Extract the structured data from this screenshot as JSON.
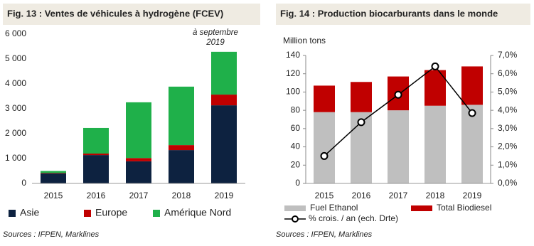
{
  "chart_data": [
    {
      "type": "bar",
      "stacked": true,
      "title": "Fig. 13 : Ventes de véhicules à hydrogène (FCEV)",
      "categories": [
        "2015",
        "2016",
        "2017",
        "2018",
        "2019"
      ],
      "series": [
        {
          "name": "Asie",
          "color": "#0d2240",
          "values": [
            400,
            1140,
            890,
            1340,
            3140
          ]
        },
        {
          "name": "Europe",
          "color": "#c00000",
          "values": [
            20,
            60,
            130,
            200,
            430
          ]
        },
        {
          "name": "Amérique Nord",
          "color": "#1fb04a",
          "values": [
            80,
            1030,
            2240,
            2350,
            1720
          ]
        }
      ],
      "ylim": [
        0,
        6000
      ],
      "yticks": [
        0,
        {
          "value": 1000,
          "label": "1 000"
        },
        {
          "value": 2000,
          "label": "2 000"
        },
        {
          "value": 3000,
          "label": "3 000"
        },
        {
          "value": 4000,
          "label": "4 000"
        },
        {
          "value": 5000,
          "label": "5 000"
        },
        {
          "value": 6000,
          "label": "6 000"
        }
      ],
      "annotation": [
        "à septembre",
        "2019"
      ],
      "source": "Sources : IFPEN, Marklines"
    },
    {
      "type": "bar",
      "stacked": true,
      "title": "Fig. 14 : Production biocarburants dans le monde",
      "ylabel": "Million tons",
      "categories": [
        "2015",
        "2016",
        "2017",
        "2018",
        "2019"
      ],
      "series": [
        {
          "name": "Fuel Ethanol",
          "color": "#bfbfbf",
          "values": [
            78,
            78,
            80,
            85,
            86
          ]
        },
        {
          "name": "Total Biodiesel",
          "color": "#c00000",
          "values": [
            29,
            33,
            37,
            39,
            42
          ]
        },
        {
          "name": "% crois. / an (ech. Drte)",
          "color": "#000000",
          "axis": "y2",
          "values": [
            1.5,
            3.35,
            4.85,
            6.4,
            3.85
          ]
        }
      ],
      "ylim": [
        0,
        140
      ],
      "yticks": [
        0,
        20,
        40,
        60,
        80,
        100,
        120,
        140
      ],
      "y2lim": [
        0,
        7
      ],
      "y2ticks": [
        {
          "value": 0,
          "label": "0,0%"
        },
        {
          "value": 1,
          "label": "1,0%"
        },
        {
          "value": 2,
          "label": "2,0%"
        },
        {
          "value": 3,
          "label": "3,0%"
        },
        {
          "value": 4,
          "label": "4,0%"
        },
        {
          "value": 5,
          "label": "5,0%"
        },
        {
          "value": 6,
          "label": "6,0%"
        },
        {
          "value": 7,
          "label": "7,0%"
        }
      ],
      "source": "Sources : IFPEN, Marklines"
    }
  ]
}
